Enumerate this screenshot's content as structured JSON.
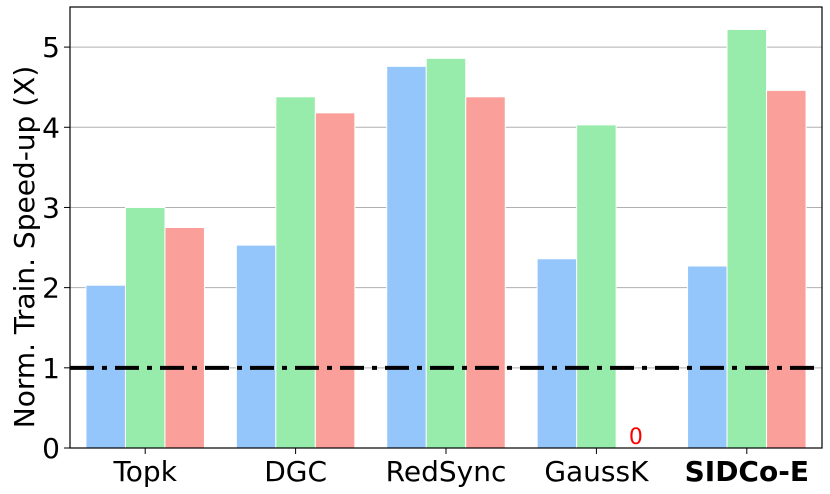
{
  "chart_data": {
    "type": "bar",
    "title": "",
    "xlabel": "",
    "ylabel": "Norm. Train. Speed-up (X)",
    "ylim": [
      0,
      5.5
    ],
    "yticks": [
      0,
      1,
      2,
      3,
      4,
      5
    ],
    "grid": "horizontal",
    "legend": "none",
    "categories": [
      "Topk",
      "DGC",
      "RedSync",
      "GaussK",
      "SIDCo-E"
    ],
    "highlight_category": "SIDCo-E",
    "highlight_color": "#ff0000",
    "series": [
      {
        "color": "#94c5fb",
        "values": [
          2.03,
          2.53,
          4.76,
          2.36,
          2.27
        ]
      },
      {
        "color": "#98ecab",
        "values": [
          3.0,
          4.38,
          4.86,
          4.03,
          5.22
        ]
      },
      {
        "color": "#fb9f9a",
        "values": [
          2.75,
          4.18,
          4.38,
          0,
          4.46
        ]
      }
    ],
    "reference_line": {
      "value": 1,
      "style": "dash-dot",
      "color": "#000000"
    },
    "annotations": [
      {
        "text": "0",
        "category": "GaussK",
        "series_index": 2,
        "color": "#ff0000"
      }
    ]
  }
}
